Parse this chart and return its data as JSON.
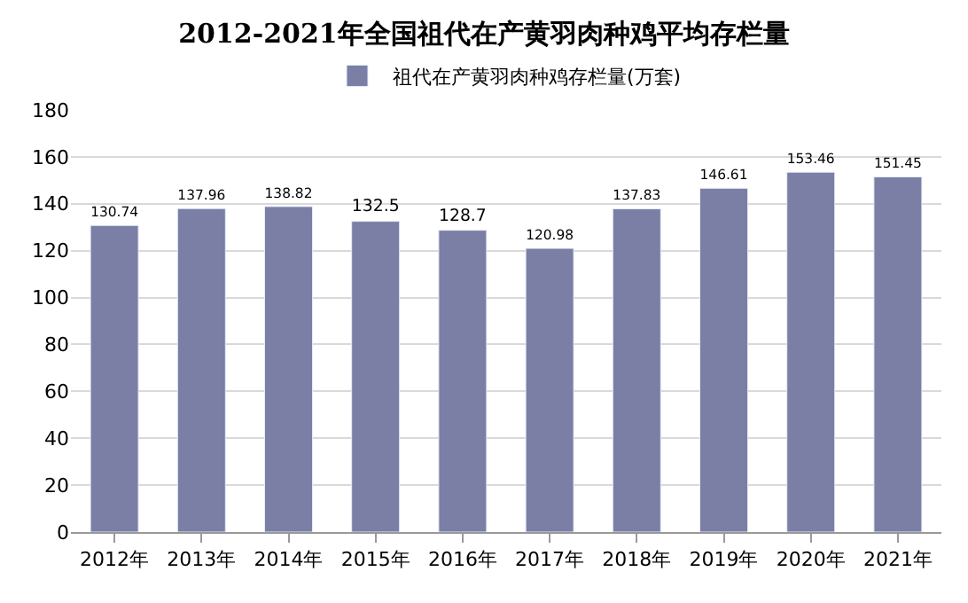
{
  "chart_data": {
    "type": "bar",
    "title": "2012-2021年全国祖代在产黄羽肉种鸡平均存栏量",
    "categories": [
      "2012年",
      "2013年",
      "2014年",
      "2015年",
      "2016年",
      "2017年",
      "2018年",
      "2019年",
      "2020年",
      "2021年"
    ],
    "series": [
      {
        "name": "祖代在产黄羽肉种鸡存栏量(万套)",
        "color": "#7b7fa6",
        "values": [
          130.74,
          137.96,
          138.82,
          132.5,
          128.7,
          120.98,
          137.83,
          146.61,
          153.46,
          151.45
        ]
      }
    ],
    "ylim": [
      0,
      180
    ],
    "yticks": [
      0,
      20,
      40,
      60,
      80,
      100,
      120,
      140,
      160,
      180
    ],
    "grid": "y",
    "legend": "top",
    "data_labels": true
  }
}
